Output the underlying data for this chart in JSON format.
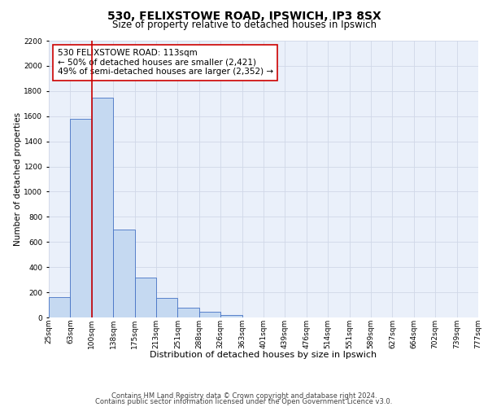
{
  "title1": "530, FELIXSTOWE ROAD, IPSWICH, IP3 8SX",
  "title2": "Size of property relative to detached houses in Ipswich",
  "xlabel": "Distribution of detached houses by size in Ipswich",
  "ylabel": "Number of detached properties",
  "bin_labels": [
    "25sqm",
    "63sqm",
    "100sqm",
    "138sqm",
    "175sqm",
    "213sqm",
    "251sqm",
    "288sqm",
    "326sqm",
    "363sqm",
    "401sqm",
    "439sqm",
    "476sqm",
    "514sqm",
    "551sqm",
    "589sqm",
    "627sqm",
    "664sqm",
    "702sqm",
    "739sqm",
    "777sqm"
  ],
  "bar_values": [
    160,
    1580,
    1750,
    700,
    315,
    155,
    80,
    45,
    20,
    0,
    0,
    0,
    0,
    0,
    0,
    0,
    0,
    0,
    0,
    0
  ],
  "bar_color": "#c5d9f1",
  "bar_edge_color": "#4472c4",
  "grid_color": "#d0d8e8",
  "bg_color": "#eaf0fa",
  "red_line_color": "#cc0000",
  "annotation_text": "530 FELIXSTOWE ROAD: 113sqm\n← 50% of detached houses are smaller (2,421)\n49% of semi-detached houses are larger (2,352) →",
  "annotation_box_color": "#ffffff",
  "annotation_box_edge": "#cc0000",
  "ylim": [
    0,
    2200
  ],
  "yticks": [
    0,
    200,
    400,
    600,
    800,
    1000,
    1200,
    1400,
    1600,
    1800,
    2000,
    2200
  ],
  "footer1": "Contains HM Land Registry data © Crown copyright and database right 2024.",
  "footer2": "Contains public sector information licensed under the Open Government Licence v3.0.",
  "title1_fontsize": 10,
  "title2_fontsize": 8.5,
  "xlabel_fontsize": 8,
  "ylabel_fontsize": 7.5,
  "tick_fontsize": 6.5,
  "annotation_fontsize": 7.5,
  "footer_fontsize": 6
}
